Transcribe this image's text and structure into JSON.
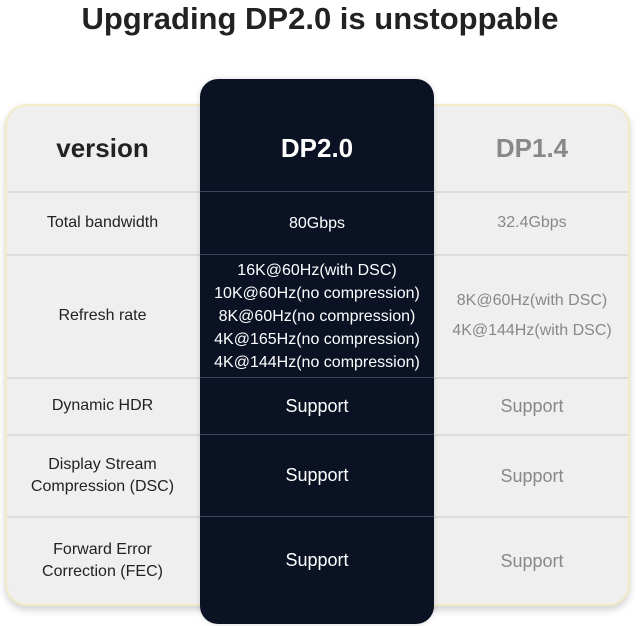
{
  "title": "Upgrading DP2.0 is unstoppable",
  "colors": {
    "highlight_column": "#0b1224",
    "card": "#efefef",
    "border": "#f1ebc8"
  },
  "headers": {
    "label": "version",
    "new": "DP2.0",
    "old": "DP1.4"
  },
  "rows": [
    {
      "label": [
        "Total bandwidth"
      ],
      "new": [
        "80Gbps"
      ],
      "old": [
        "32.4Gbps"
      ]
    },
    {
      "label": [
        "Refresh rate"
      ],
      "new": [
        "16K@60Hz(with DSC)",
        "10K@60Hz(no compression)",
        "8K@60Hz(no compression)",
        "4K@165Hz(no compression)",
        "4K@144Hz(no compression)"
      ],
      "old": [
        "8K@60Hz(with DSC)",
        "4K@144Hz(with DSC)"
      ]
    },
    {
      "label": [
        "Dynamic HDR"
      ],
      "new": [
        "Support"
      ],
      "old": [
        "Support"
      ]
    },
    {
      "label": [
        "Display Stream",
        "Compression (DSC)"
      ],
      "new": [
        "Support"
      ],
      "old": [
        "Support"
      ]
    },
    {
      "label": [
        "Forward Error",
        "Correction (FEC)"
      ],
      "new": [
        "Support"
      ],
      "old": [
        "Support"
      ]
    }
  ]
}
